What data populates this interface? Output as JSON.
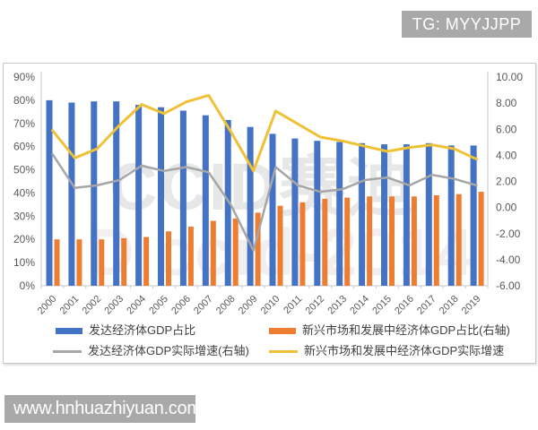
{
  "badges": {
    "top_right": "TG: MYYJJPP",
    "bottom_left": "www.hnhuazhiyuan.com"
  },
  "watermark": {
    "line1": "CCID赛迪",
    "line2": "D ccid-2014"
  },
  "legend": {
    "items": [
      {
        "label": "发达经济体GDP占比",
        "color": "#4472C4",
        "swatch": "bar"
      },
      {
        "label": "新兴市场和发展中经济体GDP占比(右轴)",
        "color": "#ED7D31",
        "swatch": "bar"
      },
      {
        "label": "发达经济体GDP实际增速(右轴)",
        "color": "#A6A6A6",
        "swatch": "line"
      },
      {
        "label": "新兴市场和发展中经济体GDP实际增速",
        "color": "#EFC137",
        "swatch": "line"
      }
    ]
  },
  "chart_data": {
    "type": "combo-bar-line",
    "categories": [
      "2000",
      "2001",
      "2002",
      "2003",
      "2004",
      "2005",
      "2006",
      "2007",
      "2008",
      "2009",
      "2010",
      "2011",
      "2012",
      "2013",
      "2014",
      "2015",
      "2016",
      "2017",
      "2018",
      "2019"
    ],
    "series": [
      {
        "name": "发达经济体GDP占比",
        "type": "bar",
        "axis": "left",
        "color": "#4472C4",
        "values": [
          80,
          79,
          79.5,
          79.5,
          78,
          77,
          75.5,
          73.5,
          71.5,
          68.5,
          65.5,
          63.5,
          62.5,
          62,
          61.5,
          61,
          61,
          61.5,
          60.5,
          60.5
        ]
      },
      {
        "name": "新兴市场和发展中经济体GDP占比(右轴)",
        "type": "bar",
        "axis": "left",
        "color": "#ED7D31",
        "values": [
          20,
          20,
          20,
          20.5,
          21,
          23.5,
          25.5,
          28,
          29,
          31.5,
          34.5,
          36,
          37.5,
          38,
          38.5,
          38.5,
          38.5,
          39,
          39.5,
          40.5
        ]
      },
      {
        "name": "发达经济体GDP实际增速(右轴)",
        "type": "line",
        "axis": "right",
        "color": "#A6A6A6",
        "values": [
          4.1,
          1.5,
          1.7,
          2.1,
          3.2,
          2.8,
          3.1,
          2.7,
          0.2,
          -3.3,
          3.1,
          1.7,
          1.2,
          1.4,
          2.1,
          2.3,
          1.7,
          2.5,
          2.2,
          1.7
        ]
      },
      {
        "name": "新兴市场和发展中经济体GDP实际增速",
        "type": "line",
        "axis": "right",
        "color": "#EFC137",
        "values": [
          5.9,
          3.8,
          4.5,
          6.3,
          7.9,
          7.2,
          8.1,
          8.6,
          5.8,
          2.8,
          7.4,
          6.4,
          5.4,
          5.1,
          4.7,
          4.3,
          4.6,
          4.8,
          4.5,
          3.7
        ]
      }
    ],
    "left_axis": {
      "min": 0,
      "max": 90,
      "step": 10,
      "labels": [
        "90%",
        "80%",
        "70%",
        "60%",
        "50%",
        "40%",
        "30%",
        "20%",
        "10%",
        "0%"
      ]
    },
    "right_axis": {
      "min": -6,
      "max": 10,
      "step": 2,
      "labels": [
        "10.00",
        "8.00",
        "6.00",
        "4.00",
        "2.00",
        "0.00",
        "-2.00",
        "-4.00",
        "-6.00"
      ]
    },
    "grid": false,
    "legend_position": "bottom"
  }
}
